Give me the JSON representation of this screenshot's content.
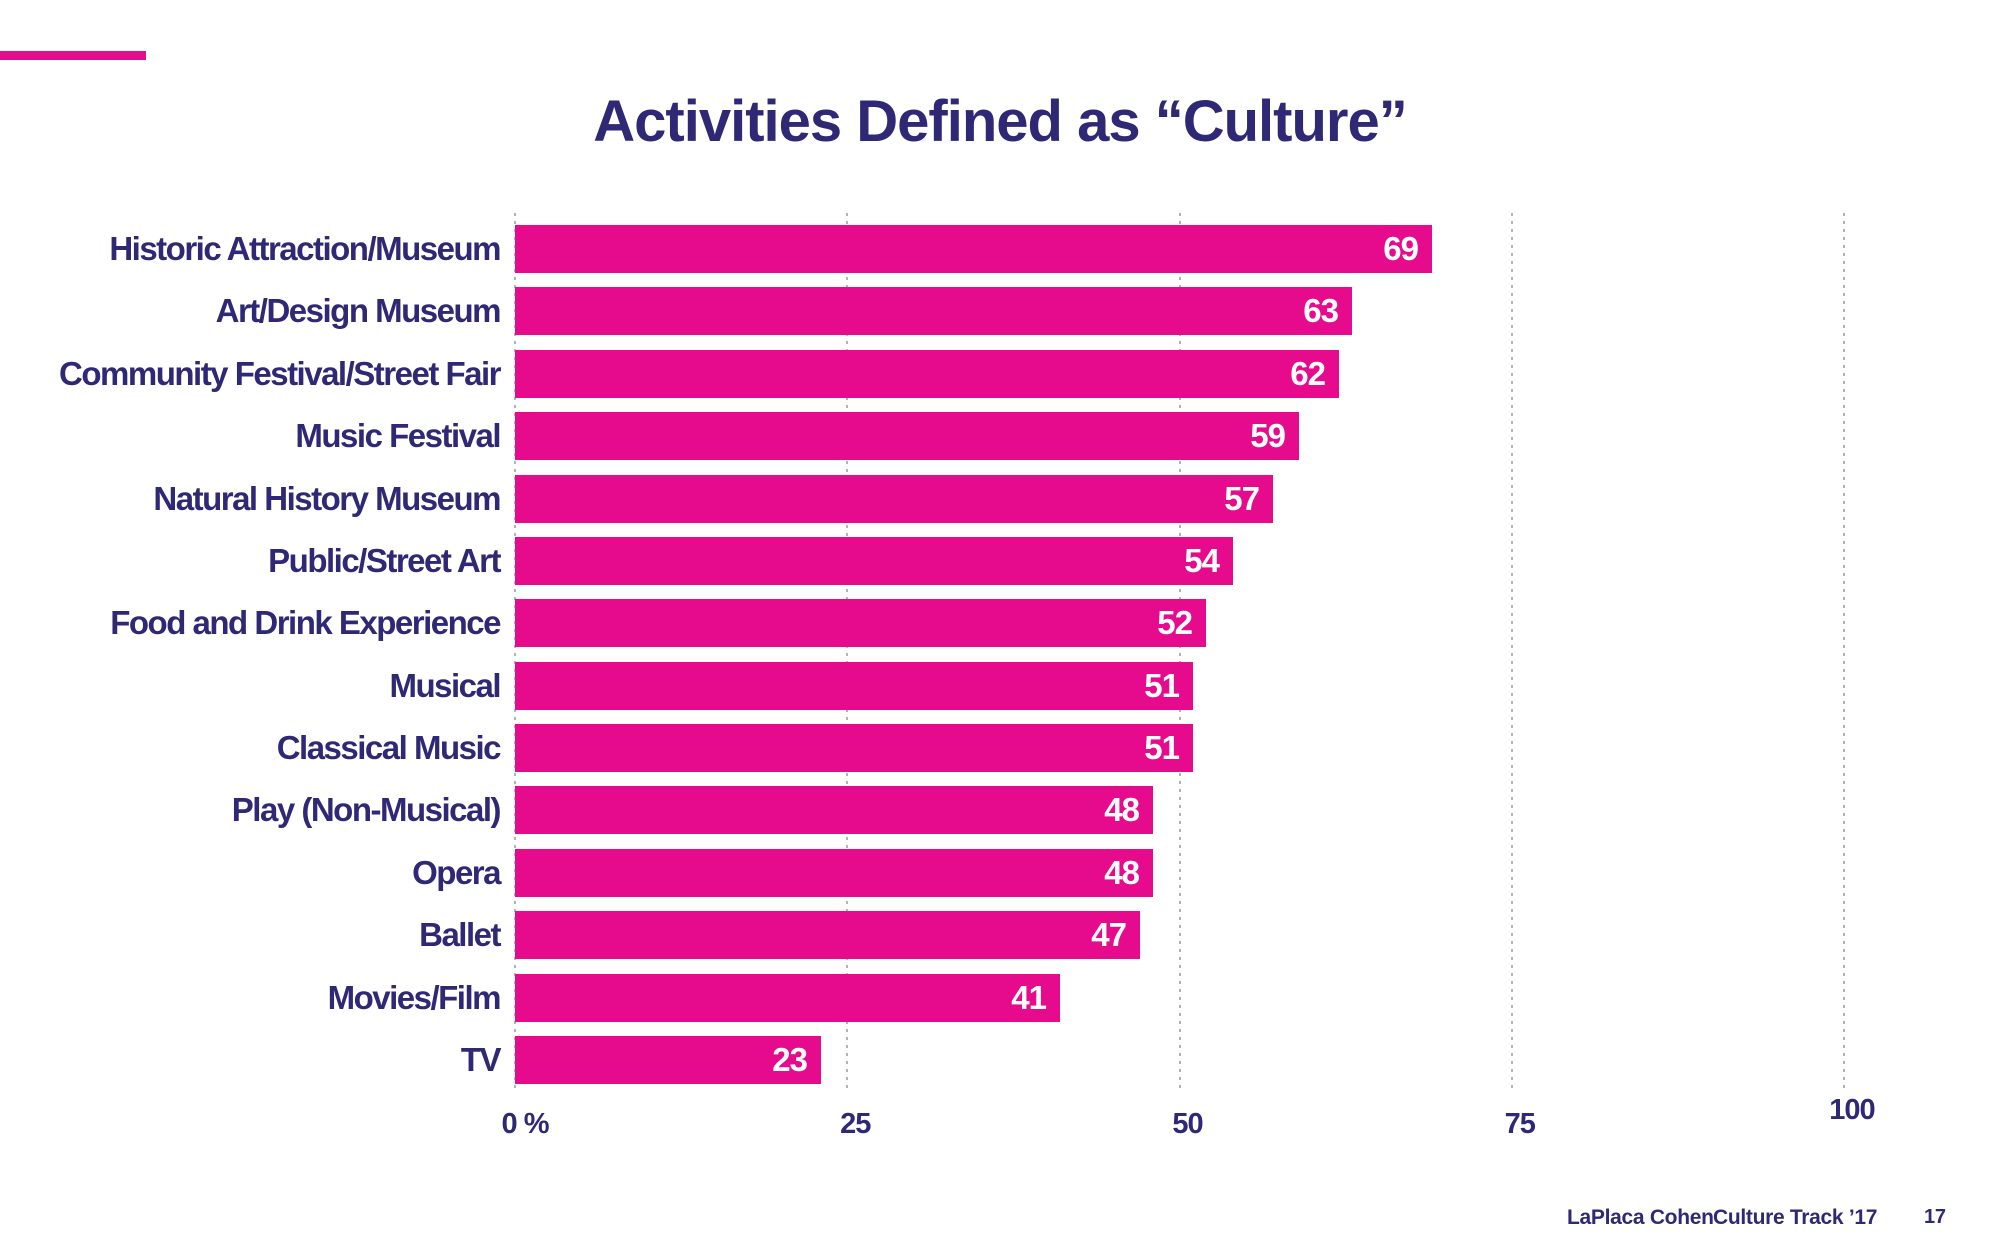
{
  "title": "Activities Defined as “Culture”",
  "colors": {
    "bar_pink": "#e60b8d",
    "navy_text": "#2e2875",
    "grid_gray": "#b3b3b3",
    "value_label_white": "#ffffff"
  },
  "chart_data": {
    "type": "bar",
    "orientation": "horizontal",
    "title": "Activities Defined as “Culture”",
    "xlabel": "",
    "ylabel": "",
    "xlim": [
      0,
      100
    ],
    "grid": "vertical-dotted",
    "legend": "none",
    "categories": [
      "Historic Attraction/Museum",
      "Art/Design Museum",
      "Community Festival/Street Fair",
      "Music Festival",
      "Natural History Museum",
      "Public/Street Art",
      "Food and Drink Experience",
      "Musical",
      "Classical Music",
      "Play (Non-Musical)",
      "Opera",
      "Ballet",
      "Movies/Film",
      "TV"
    ],
    "values": [
      69,
      63,
      62,
      59,
      57,
      54,
      52,
      51,
      51,
      48,
      48,
      47,
      41,
      23
    ],
    "x_ticks": [
      {
        "label": "0 %",
        "value": 0,
        "raised": false
      },
      {
        "label": "25",
        "value": 25,
        "raised": false
      },
      {
        "label": "50",
        "value": 50,
        "raised": false
      },
      {
        "label": "75",
        "value": 75,
        "raised": false
      },
      {
        "label": "100",
        "value": 100,
        "raised": true
      }
    ]
  },
  "footer": {
    "brand": "LaPlaca Cohen",
    "report": "Culture Track ’17",
    "page_number": "17"
  }
}
